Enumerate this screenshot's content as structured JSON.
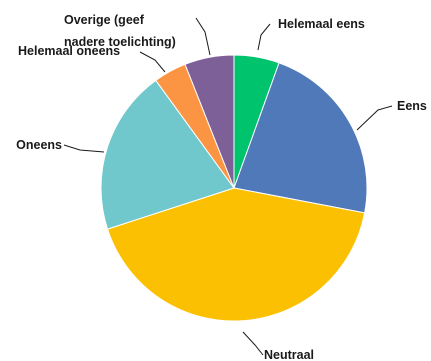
{
  "chart_data": {
    "type": "pie",
    "start_angle_deg": 0,
    "direction": "clockwise",
    "slices": [
      {
        "label": "Helemaal eens",
        "value": 5.5,
        "color": "#00c36e"
      },
      {
        "label": "Eens",
        "value": 22.5,
        "color": "#4f79b8"
      },
      {
        "label": "Neutraal",
        "value": 42,
        "color": "#fbc002"
      },
      {
        "label": "Oneens",
        "value": 20,
        "color": "#70c8cc"
      },
      {
        "label": "Helemaal oneens",
        "value": 4,
        "color": "#fb9543"
      },
      {
        "label_lines": [
          "Overige (geef",
          "nadere toelichting)"
        ],
        "value": 6,
        "color": "#7d6098"
      }
    ]
  }
}
